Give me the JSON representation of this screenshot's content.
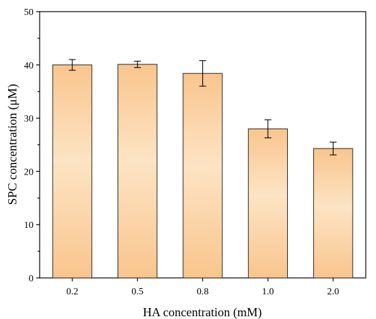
{
  "chart_data": {
    "type": "bar",
    "title": "",
    "xlabel": "HA concentration (mM)",
    "ylabel": "SPC concentration (μM)",
    "categories": [
      "0.2",
      "0.5",
      "0.8",
      "1.0",
      "2.0"
    ],
    "values": [
      40.0,
      40.1,
      38.4,
      28.0,
      24.3
    ],
    "errors": [
      1.0,
      0.6,
      2.4,
      1.7,
      1.2
    ],
    "ylim": [
      0,
      50
    ],
    "yticks": [
      0,
      10,
      20,
      30,
      40,
      50
    ],
    "ytick_labels": [
      "0",
      "10",
      "20",
      "30",
      "40",
      "50"
    ],
    "grid": false,
    "legend": "none",
    "colors": {
      "bar_light": "#fde4c4",
      "bar_dark": "#f9c58d",
      "bar_edge": "#222222",
      "axis": "#000000"
    }
  }
}
